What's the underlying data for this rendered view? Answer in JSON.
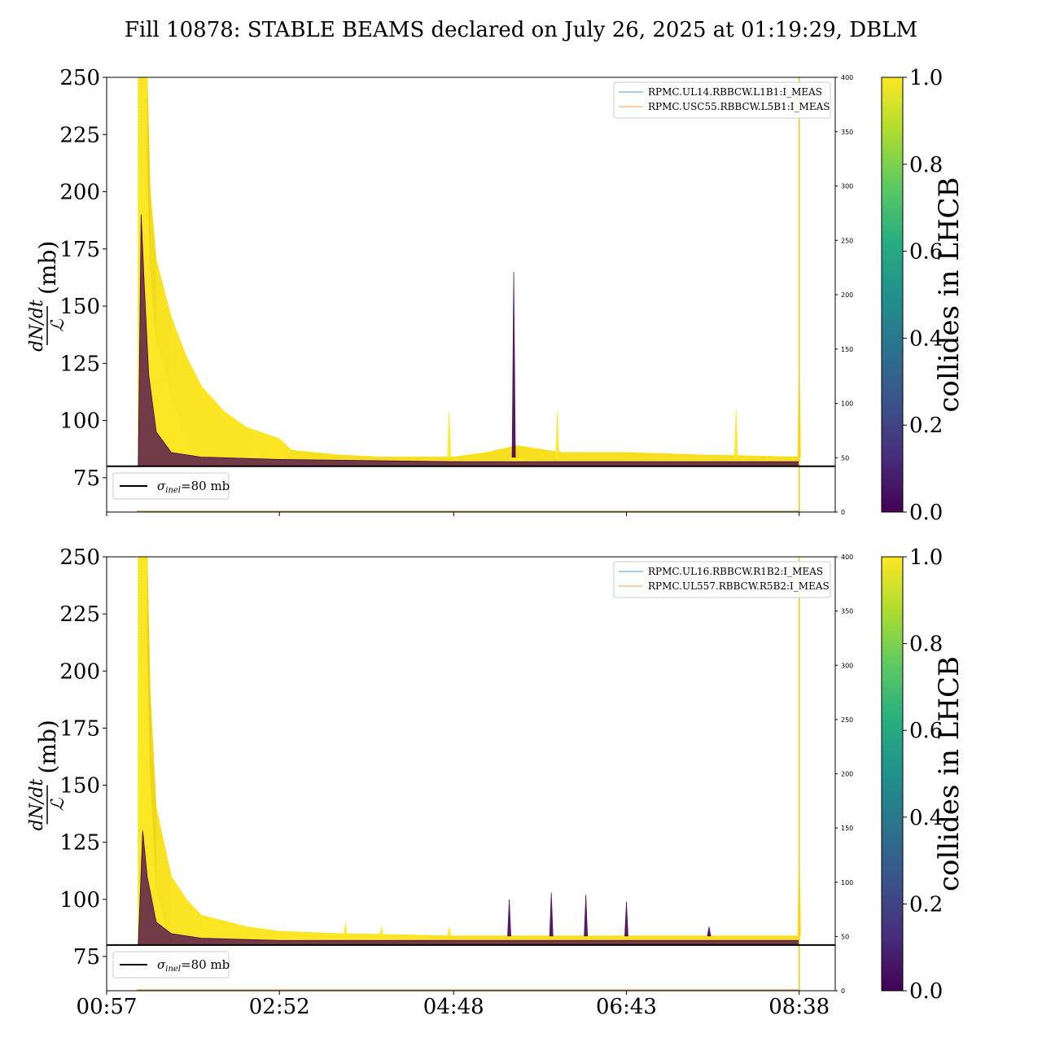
{
  "title": "Fill 10878: STABLE BEAMS declared on July 26, 2025 at 01:19:29, DBLM",
  "colors": {
    "yellow": "#fde725",
    "purple": "#440154",
    "legend_blue": "#1f77b4",
    "legend_orange": "#ff7f0e",
    "reference_line": "#000000"
  },
  "colorbar": {
    "label": "collides in LHCB",
    "ticks": [
      "0.0",
      "0.2",
      "0.4",
      "0.6",
      "0.8",
      "1.0"
    ],
    "colormap": "viridis"
  },
  "chart_data": [
    {
      "type": "line",
      "panel": "top",
      "ylabel_fraction_num": "dN/dt",
      "ylabel_fraction_den": "ℒ",
      "ylabel_unit": "(mb)",
      "ylim": [
        60,
        250
      ],
      "y_ticks": [
        "75",
        "100",
        "125",
        "150",
        "175",
        "200",
        "225",
        "250"
      ],
      "y2lim": [
        0,
        400
      ],
      "y2_ticks": [
        "0",
        "50",
        "100",
        "150",
        "200",
        "250",
        "300",
        "350",
        "400"
      ],
      "x_tick_labels": [
        "00:57",
        "02:52",
        "04:48",
        "06:43",
        "08:38"
      ],
      "x_tick_labels_visible": false,
      "legend_top_right": [
        "RPMC.UL14.RBBCW.L1B1:I_MEAS",
        "RPMC.USC55.RBBCW.L5B1:I_MEAS"
      ],
      "legend_bottom_left": "σinel=80 mb",
      "legend_bottom_left_parts": {
        "symbol": "σ",
        "sub": "inel",
        "rest": "=80 mb"
      },
      "reference_line_y": 80,
      "stable_beams_end_x": "08:38",
      "envelope_yellow": [
        [
          "01:18",
          250
        ],
        [
          "01:24",
          250
        ],
        [
          "01:26",
          200
        ],
        [
          "01:30",
          170
        ],
        [
          "01:40",
          145
        ],
        [
          "01:50",
          128
        ],
        [
          "02:00",
          115
        ],
        [
          "02:15",
          104
        ],
        [
          "02:30",
          97
        ],
        [
          "02:52",
          92
        ],
        [
          "03:00",
          87
        ],
        [
          "03:30",
          85
        ],
        [
          "04:00",
          84
        ],
        [
          "04:48",
          84
        ],
        [
          "05:10",
          86
        ],
        [
          "05:30",
          89
        ],
        [
          "06:00",
          86
        ],
        [
          "06:43",
          86
        ],
        [
          "07:30",
          85
        ],
        [
          "08:38",
          84
        ]
      ],
      "envelope_purple": [
        [
          "01:18",
          80
        ],
        [
          "01:20",
          190
        ],
        [
          "01:22",
          160
        ],
        [
          "01:25",
          120
        ],
        [
          "01:30",
          95
        ],
        [
          "01:40",
          86
        ],
        [
          "02:00",
          84
        ],
        [
          "02:52",
          83
        ],
        [
          "04:48",
          82
        ],
        [
          "06:43",
          82
        ],
        [
          "08:38",
          82
        ]
      ],
      "spikes": [
        {
          "x": "04:45",
          "y": 104,
          "color": "yellow"
        },
        {
          "x": "05:28",
          "y": 165,
          "color": "purple"
        },
        {
          "x": "05:57",
          "y": 104,
          "color": "yellow"
        },
        {
          "x": "07:56",
          "y": 105,
          "color": "yellow"
        },
        {
          "x": "08:38",
          "y": 125,
          "color": "yellow"
        }
      ]
    },
    {
      "type": "line",
      "panel": "bottom",
      "ylabel_fraction_num": "dN/dt",
      "ylabel_fraction_den": "ℒ",
      "ylabel_unit": "(mb)",
      "ylim": [
        60,
        250
      ],
      "y_ticks": [
        "75",
        "100",
        "125",
        "150",
        "175",
        "200",
        "225",
        "250"
      ],
      "y2lim": [
        0,
        400
      ],
      "y2_ticks": [
        "0",
        "50",
        "100",
        "150",
        "200",
        "250",
        "300",
        "350",
        "400"
      ],
      "x_tick_labels": [
        "00:57",
        "02:52",
        "04:48",
        "06:43",
        "08:38"
      ],
      "x_tick_labels_visible": true,
      "legend_top_right": [
        "RPMC.UL16.RBBCW.R1B2:I_MEAS",
        "RPMC.UL557.RBBCW.R5B2:I_MEAS"
      ],
      "legend_bottom_left": "σinel=80 mb",
      "legend_bottom_left_parts": {
        "symbol": "σ",
        "sub": "inel",
        "rest": "=80 mb"
      },
      "reference_line_y": 80,
      "stable_beams_end_x": "08:38",
      "envelope_yellow": [
        [
          "01:18",
          250
        ],
        [
          "01:24",
          250
        ],
        [
          "01:26",
          190
        ],
        [
          "01:30",
          140
        ],
        [
          "01:40",
          110
        ],
        [
          "01:50",
          100
        ],
        [
          "02:00",
          93
        ],
        [
          "02:30",
          88
        ],
        [
          "02:52",
          86
        ],
        [
          "03:30",
          85
        ],
        [
          "04:48",
          84
        ],
        [
          "06:43",
          84
        ],
        [
          "08:38",
          84
        ]
      ],
      "envelope_purple": [
        [
          "01:18",
          80
        ],
        [
          "01:21",
          130
        ],
        [
          "01:24",
          110
        ],
        [
          "01:30",
          90
        ],
        [
          "01:40",
          85
        ],
        [
          "02:00",
          83
        ],
        [
          "02:52",
          82
        ],
        [
          "04:48",
          82
        ],
        [
          "06:43",
          82
        ],
        [
          "08:38",
          82
        ]
      ],
      "spikes": [
        {
          "x": "03:36",
          "y": 90,
          "color": "yellow"
        },
        {
          "x": "04:00",
          "y": 88,
          "color": "yellow"
        },
        {
          "x": "04:45",
          "y": 88,
          "color": "yellow"
        },
        {
          "x": "05:25",
          "y": 100,
          "color": "purple"
        },
        {
          "x": "05:53",
          "y": 103,
          "color": "purple"
        },
        {
          "x": "06:16",
          "y": 102,
          "color": "purple"
        },
        {
          "x": "06:43",
          "y": 99,
          "color": "purple"
        },
        {
          "x": "07:38",
          "y": 88,
          "color": "purple"
        },
        {
          "x": "08:38",
          "y": 120,
          "color": "yellow"
        }
      ]
    }
  ]
}
